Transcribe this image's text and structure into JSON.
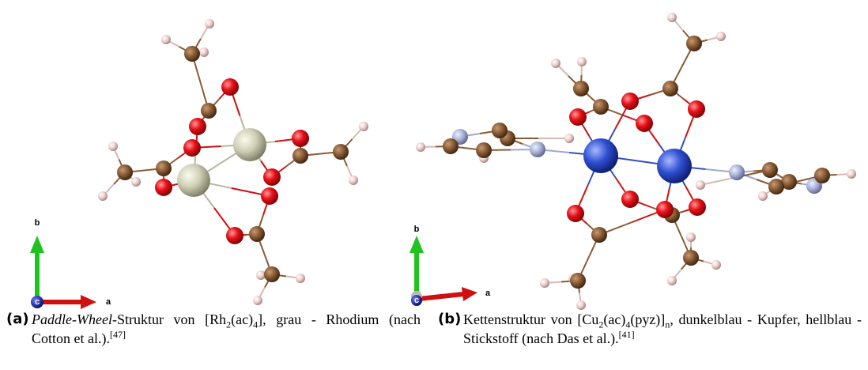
{
  "panels": [
    {
      "label": "(a)",
      "caption": [
        "Paddle-Wheel",
        "-Struktur von [Rh",
        "2",
        "(ac)",
        "4",
        "], grau - Rhodium (nach Cotton et al.).",
        "[47]"
      ],
      "axes": {
        "a": "a",
        "b": "b",
        "c": "c"
      }
    },
    {
      "label": "(b)",
      "caption": [
        "Kettenstruktur von [Cu",
        "2",
        "(ac)",
        "4",
        "(pyz)]",
        "n",
        ", dunkelblau - Kupfer, hellblau - Stickstoff (nach Das et al.).",
        "[41]"
      ],
      "axes": {
        "a": "a",
        "b": "b",
        "c": "c"
      }
    }
  ]
}
